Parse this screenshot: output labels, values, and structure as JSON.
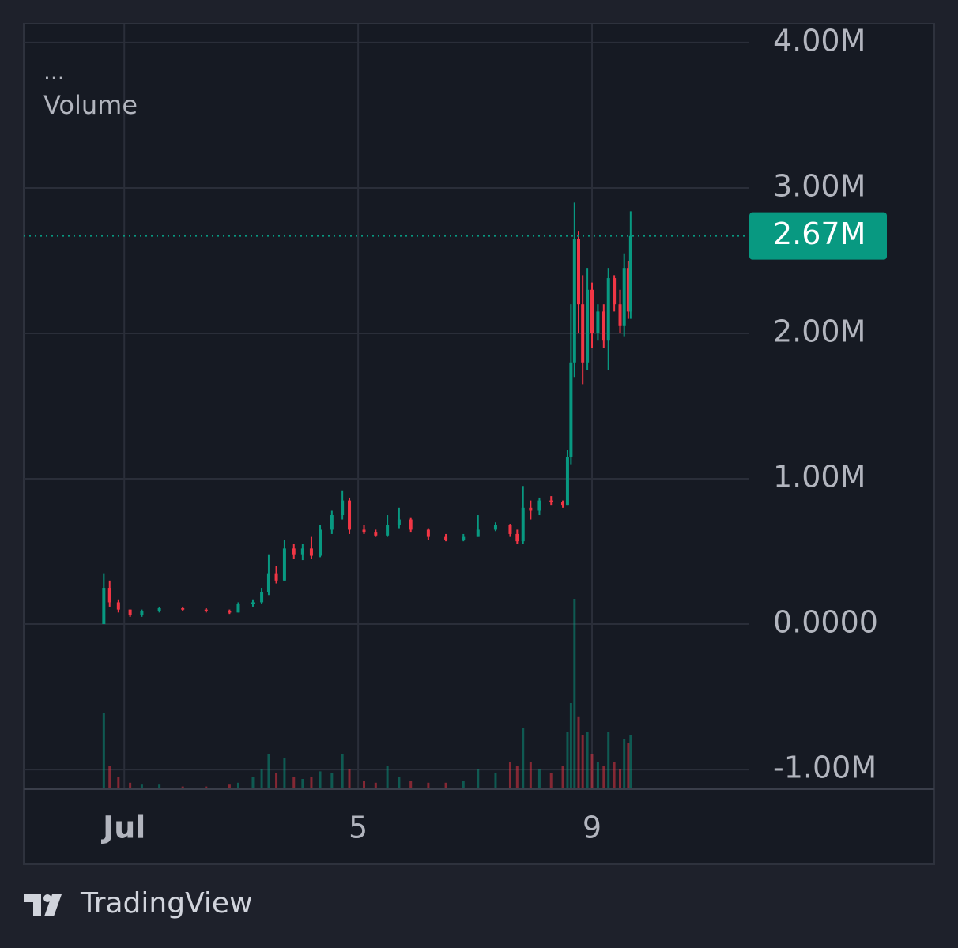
{
  "chart_data": {
    "type": "candlestick",
    "indicator_menu": "...",
    "indicator_title": "Volume",
    "brand": "TradingView",
    "x": [
      0.65,
      0.75,
      0.9,
      1.1,
      1.3,
      1.6,
      2.0,
      2.4,
      2.8,
      2.95,
      3.2,
      3.35,
      3.47,
      3.6,
      3.74,
      3.9,
      4.05,
      4.2,
      4.35,
      4.55,
      4.73,
      4.85,
      5.1,
      5.3,
      5.5,
      5.7,
      5.9,
      6.2,
      6.5,
      6.8,
      7.05,
      7.35,
      7.6,
      7.72,
      7.82,
      7.95,
      8.1,
      8.3,
      8.5,
      8.58,
      8.64,
      8.7,
      8.77,
      8.84,
      8.92,
      9.0,
      9.1,
      9.2,
      9.28,
      9.38,
      9.48,
      9.55,
      9.62,
      9.66
    ],
    "open": [
      0.0,
      0.25,
      0.15,
      0.1,
      0.06,
      0.09,
      0.11,
      0.1,
      0.09,
      0.08,
      0.14,
      0.15,
      0.22,
      0.35,
      0.3,
      0.52,
      0.48,
      0.52,
      0.47,
      0.65,
      0.75,
      0.85,
      0.65,
      0.63,
      0.61,
      0.68,
      0.72,
      0.65,
      0.6,
      0.58,
      0.6,
      0.65,
      0.68,
      0.62,
      0.57,
      0.8,
      0.78,
      0.85,
      0.84,
      0.82,
      1.15,
      1.8,
      2.65,
      2.2,
      1.8,
      2.3,
      2.0,
      2.15,
      1.95,
      2.38,
      2.2,
      2.05,
      2.45,
      2.15
    ],
    "high": [
      0.35,
      0.3,
      0.17,
      0.1,
      0.1,
      0.12,
      0.12,
      0.11,
      0.1,
      0.15,
      0.17,
      0.25,
      0.48,
      0.4,
      0.58,
      0.55,
      0.55,
      0.6,
      0.68,
      0.78,
      0.92,
      0.87,
      0.68,
      0.65,
      0.75,
      0.8,
      0.73,
      0.66,
      0.62,
      0.62,
      0.75,
      0.7,
      0.69,
      0.65,
      0.95,
      0.85,
      0.87,
      0.88,
      0.85,
      1.2,
      2.2,
      2.9,
      2.7,
      2.4,
      2.45,
      2.35,
      2.2,
      2.2,
      2.45,
      2.4,
      2.3,
      2.55,
      2.5,
      2.84
    ],
    "low": [
      0.0,
      0.12,
      0.08,
      0.05,
      0.05,
      0.08,
      0.09,
      0.08,
      0.07,
      0.08,
      0.12,
      0.14,
      0.2,
      0.28,
      0.3,
      0.45,
      0.44,
      0.45,
      0.46,
      0.62,
      0.72,
      0.62,
      0.62,
      0.6,
      0.6,
      0.66,
      0.63,
      0.58,
      0.57,
      0.57,
      0.6,
      0.64,
      0.6,
      0.55,
      0.55,
      0.72,
      0.75,
      0.82,
      0.8,
      0.82,
      1.1,
      1.7,
      2.0,
      1.65,
      1.75,
      1.9,
      1.95,
      1.9,
      1.75,
      2.15,
      2.0,
      1.98,
      2.1,
      2.1
    ],
    "close": [
      0.25,
      0.15,
      0.1,
      0.06,
      0.09,
      0.11,
      0.1,
      0.09,
      0.08,
      0.14,
      0.15,
      0.22,
      0.35,
      0.3,
      0.52,
      0.48,
      0.52,
      0.47,
      0.65,
      0.75,
      0.85,
      0.65,
      0.63,
      0.61,
      0.68,
      0.72,
      0.65,
      0.6,
      0.58,
      0.6,
      0.65,
      0.68,
      0.62,
      0.57,
      0.8,
      0.78,
      0.85,
      0.84,
      0.82,
      1.15,
      1.8,
      2.65,
      2.2,
      1.8,
      2.3,
      2.0,
      2.15,
      1.95,
      2.38,
      2.2,
      2.05,
      2.45,
      2.15,
      2.67
    ],
    "volume": [
      40,
      12,
      6,
      3,
      2,
      2,
      1,
      1,
      2,
      3,
      6,
      10,
      18,
      8,
      16,
      6,
      5,
      6,
      9,
      8,
      18,
      10,
      4,
      3,
      12,
      6,
      4,
      3,
      3,
      4,
      10,
      8,
      14,
      12,
      32,
      14,
      10,
      8,
      12,
      30,
      45,
      100,
      38,
      28,
      30,
      18,
      14,
      12,
      30,
      14,
      10,
      26,
      24,
      28
    ],
    "up_color": "#089981",
    "down_color": "#f23645",
    "last_price": {
      "value": 2.67,
      "label": "2.67M"
    },
    "xlim": [
      -0.72,
      11.69
    ],
    "xticks": [
      {
        "value": 1,
        "label": "Jul"
      },
      {
        "value": 5,
        "label": "5"
      },
      {
        "value": 9,
        "label": "9"
      }
    ],
    "ylim": [
      -1.13,
      4.13
    ],
    "yticks": [
      {
        "value": 4,
        "label": "4.00M"
      },
      {
        "value": 3,
        "label": "3.00M"
      },
      {
        "value": 2,
        "label": "2.00M"
      },
      {
        "value": 1,
        "label": "1.00M"
      },
      {
        "value": 0,
        "label": "0.0000"
      },
      {
        "value": -1,
        "label": "-1.00M"
      }
    ],
    "grid": true
  }
}
